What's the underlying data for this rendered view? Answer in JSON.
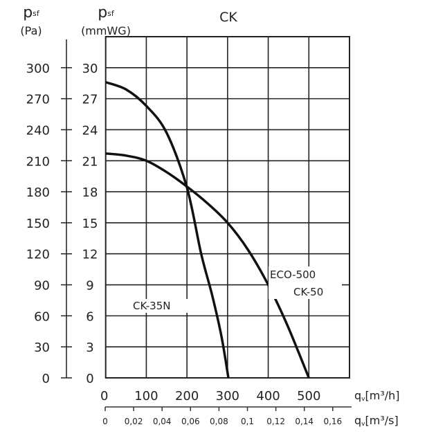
{
  "chart_data": {
    "type": "line",
    "title": "CK",
    "y_axes": [
      {
        "label_symbol": "p",
        "label_sub": "sf",
        "unit": "(Pa)",
        "ticks": [
          0,
          30,
          60,
          90,
          120,
          150,
          180,
          210,
          240,
          270,
          300
        ]
      },
      {
        "label_symbol": "p",
        "label_sub": "sf",
        "unit": "(mmWG)",
        "ticks": [
          0,
          3,
          6,
          9,
          12,
          15,
          18,
          21,
          24,
          27,
          30
        ],
        "ylim": [
          0,
          33
        ]
      }
    ],
    "x_axes": [
      {
        "label_symbol": "q",
        "label_sub": "v",
        "unit": "[m³/h]",
        "ticks": [
          0,
          100,
          200,
          300,
          400,
          500
        ],
        "xlim": [
          0,
          600
        ]
      },
      {
        "label_symbol": "q",
        "label_sub": "v",
        "unit": "[m³/s]",
        "ticks": [
          "0",
          "0,02",
          "0,04",
          "0,06",
          "0,08",
          "0,1",
          "0,12",
          "0,14",
          "0,16"
        ]
      }
    ],
    "grid": true,
    "series": [
      {
        "name": "CK-35N",
        "x": [
          0,
          50,
          100,
          150,
          200,
          235,
          262,
          285,
          302
        ],
        "y": [
          28.6,
          27.9,
          26.3,
          23.7,
          18.4,
          12,
          8,
          4,
          0
        ]
      },
      {
        "name": "ECO-500 CK-50",
        "name_lines": [
          "ECO-500",
          "CK-50"
        ],
        "x": [
          0,
          50,
          100,
          150,
          200,
          250,
          300,
          350,
          400,
          447,
          500
        ],
        "y": [
          21.7,
          21.5,
          21.0,
          19.9,
          18.5,
          16.9,
          15.0,
          12.4,
          9.0,
          5.1,
          0
        ]
      }
    ]
  }
}
